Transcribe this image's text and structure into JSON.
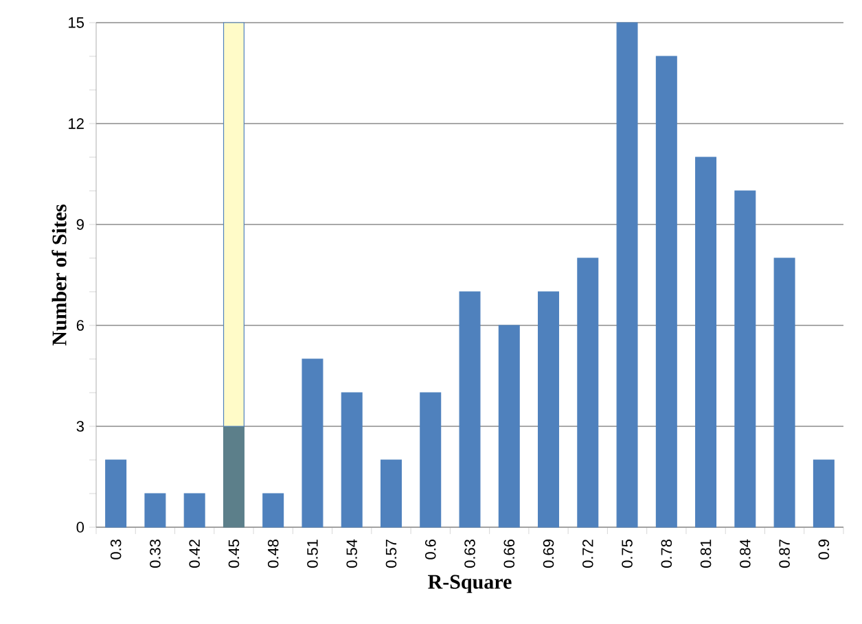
{
  "chart_data": {
    "type": "bar",
    "stacked": true,
    "xlabel": "R-Square",
    "ylabel": "Number of Sites",
    "categories": [
      "0.3",
      "0.33",
      "0.42",
      "0.45",
      "0.48",
      "0.51",
      "0.54",
      "0.57",
      "0.6",
      "0.63",
      "0.66",
      "0.69",
      "0.72",
      "0.75",
      "0.78",
      "0.81",
      "0.84",
      "0.87",
      "0.9"
    ],
    "series": [
      {
        "color": "#4f81bd",
        "colors": [
          "#4f81bd",
          "#4f81bd",
          "#4f81bd",
          "#5c7f8a",
          "#4f81bd",
          "#4f81bd",
          "#4f81bd",
          "#4f81bd",
          "#4f81bd",
          "#4f81bd",
          "#4f81bd",
          "#4f81bd",
          "#4f81bd",
          "#4f81bd",
          "#4f81bd",
          "#4f81bd",
          "#4f81bd",
          "#4f81bd",
          "#4f81bd"
        ],
        "values": [
          2,
          1,
          1,
          3,
          1,
          5,
          4,
          2,
          4,
          7,
          6,
          7,
          8,
          15,
          14,
          11,
          10,
          8,
          2
        ]
      },
      {
        "color": "#fffbc8",
        "values": [
          null,
          null,
          null,
          12,
          null,
          null,
          null,
          null,
          null,
          null,
          null,
          null,
          null,
          null,
          null,
          null,
          null,
          null,
          null
        ]
      }
    ],
    "ylim": [
      0,
      15
    ],
    "yticks": [
      0,
      3,
      6,
      9,
      12,
      15
    ],
    "grid": "y"
  }
}
